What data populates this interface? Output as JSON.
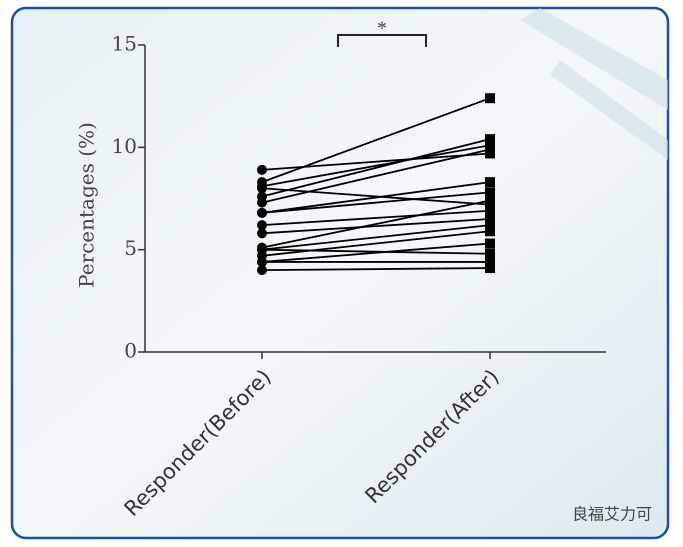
{
  "chart_data": {
    "type": "line",
    "y_label": "Percentages (%)",
    "annotation": "*",
    "watermark": "良福艾力可",
    "categories": [
      "Responder(Before)",
      "Responder(After)"
    ],
    "markers": [
      "circle",
      "square"
    ],
    "color": "#000000",
    "series": [
      {
        "values": [
          8.3,
          12.4
        ]
      },
      {
        "values": [
          8.9,
          9.7
        ]
      },
      {
        "values": [
          8.1,
          10.1
        ]
      },
      {
        "values": [
          7.6,
          10.4
        ]
      },
      {
        "values": [
          7.3,
          9.9
        ]
      },
      {
        "values": [
          8.0,
          7.2
        ]
      },
      {
        "values": [
          6.8,
          8.3
        ]
      },
      {
        "values": [
          6.8,
          7.8
        ]
      },
      {
        "values": [
          6.2,
          6.9
        ]
      },
      {
        "values": [
          5.8,
          6.5
        ]
      },
      {
        "values": [
          5.1,
          7.4
        ]
      },
      {
        "values": [
          5.0,
          6.2
        ]
      },
      {
        "values": [
          4.7,
          5.9
        ]
      },
      {
        "values": [
          4.4,
          5.3
        ]
      },
      {
        "values": [
          5.0,
          4.8
        ]
      },
      {
        "values": [
          4.4,
          4.4
        ]
      },
      {
        "values": [
          4.0,
          4.1
        ]
      }
    ],
    "ylim": [
      0,
      15
    ],
    "yticks": [
      0,
      5,
      10,
      15
    ]
  }
}
